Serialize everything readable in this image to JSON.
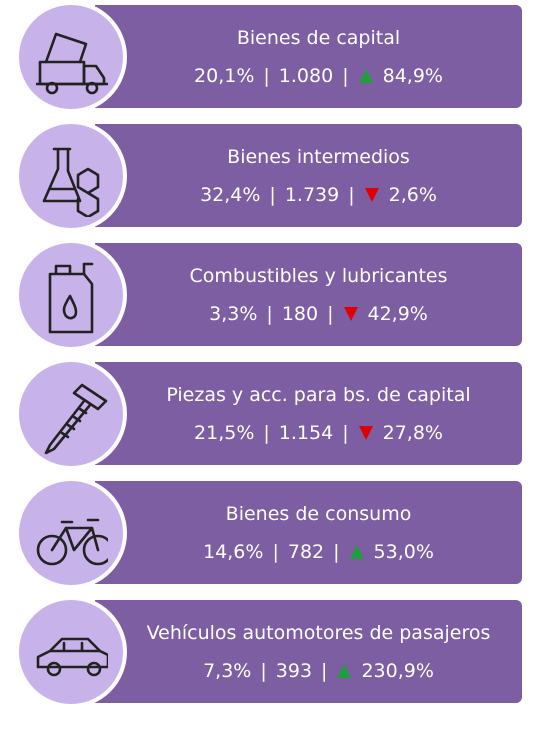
{
  "separator": "|",
  "direction_colors": {
    "up": "#1f9e3c",
    "down": "#e00000"
  },
  "items": [
    {
      "label": "Bienes de capital",
      "share": "20,1%",
      "value": "1.080",
      "direction": "up",
      "change": "84,9%"
    },
    {
      "label": "Bienes intermedios",
      "share": "32,4%",
      "value": "1.739",
      "direction": "down",
      "change": "2,6%"
    },
    {
      "label": "Combustibles y lubricantes",
      "share": "3,3%",
      "value": "180",
      "direction": "down",
      "change": "42,9%"
    },
    {
      "label": "Piezas y acc. para bs. de capital",
      "share": "21,5%",
      "value": "1.154",
      "direction": "down",
      "change": "27,8%"
    },
    {
      "label": "Bienes de consumo",
      "share": "14,6%",
      "value": "782",
      "direction": "up",
      "change": "53,0%"
    },
    {
      "label": "Vehículos automotores de pasajeros",
      "share": "7,3%",
      "value": "393",
      "direction": "up",
      "change": "230,9%"
    }
  ]
}
